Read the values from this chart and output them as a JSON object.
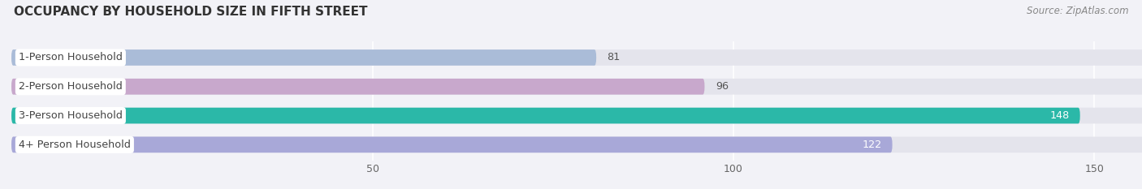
{
  "title": "OCCUPANCY BY HOUSEHOLD SIZE IN FIFTH STREET",
  "source": "Source: ZipAtlas.com",
  "categories": [
    "1-Person Household",
    "2-Person Household",
    "3-Person Household",
    "4+ Person Household"
  ],
  "values": [
    81,
    96,
    148,
    122
  ],
  "bar_colors": [
    "#aabcd8",
    "#c8a8cc",
    "#2bb8a8",
    "#a8a8d8"
  ],
  "label_colors": [
    "#555555",
    "#555555",
    "#ffffff",
    "#ffffff"
  ],
  "bg_color": "#f2f2f7",
  "bar_bg_color": "#e4e4ec",
  "xlim_data": 160,
  "xlim_display": [
    0,
    155
  ],
  "xticks": [
    50,
    100,
    150
  ],
  "bar_height": 0.55,
  "figsize": [
    14.06,
    2.33
  ],
  "dpi": 100
}
